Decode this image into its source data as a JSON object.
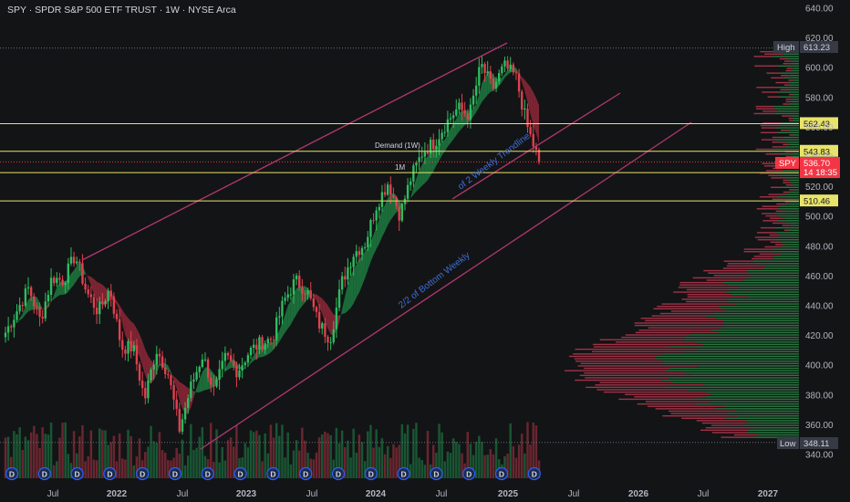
{
  "header": {
    "title": "SPY · SPDR S&P 500 ETF TRUST · 1W · NYSE Arca"
  },
  "colors": {
    "background": "#131416",
    "bull": "#22a150",
    "bear": "#d23a4a",
    "level_line": "#e8e36a",
    "channel": "#b1386f",
    "annotation_text": "#3f6ed8",
    "price_tag": "#f23645",
    "high_low_tag": "#363a45",
    "grid_text": "#b2b5be"
  },
  "chart_data": {
    "type": "candlestick",
    "symbol": "SPY",
    "timeframe": "1W",
    "x_labels": [
      "Jul",
      "2022",
      "Jul",
      "2023",
      "Jul",
      "2024",
      "Jul",
      "2025",
      "Jul",
      "2026",
      "Jul",
      "2027"
    ],
    "y_ticks": [
      340,
      360,
      380,
      400,
      420,
      440,
      460,
      480,
      500,
      520,
      540,
      560,
      580,
      600,
      620,
      640
    ],
    "y_tick_labels": [
      "340.00",
      "360.00",
      "380.00",
      "400.00",
      "420.00",
      "440.00",
      "460.00",
      "480.00",
      "500.00",
      "520.00",
      "540.00",
      "560.00",
      "580.00",
      "600.00",
      "620.00",
      "640.00"
    ],
    "ylim": [
      334,
      646
    ],
    "price_series_close": [
      {
        "date": "2021-06",
        "close": 422
      },
      {
        "date": "2021-07",
        "close": 437
      },
      {
        "date": "2021-08",
        "close": 452
      },
      {
        "date": "2021-09",
        "close": 430
      },
      {
        "date": "2021-10",
        "close": 459
      },
      {
        "date": "2021-11",
        "close": 457
      },
      {
        "date": "2021-12",
        "close": 474
      },
      {
        "date": "2022-01",
        "close": 449
      },
      {
        "date": "2022-02",
        "close": 436
      },
      {
        "date": "2022-03",
        "close": 452
      },
      {
        "date": "2022-04",
        "close": 412
      },
      {
        "date": "2022-05",
        "close": 412
      },
      {
        "date": "2022-06",
        "close": 377
      },
      {
        "date": "2022-07",
        "close": 411
      },
      {
        "date": "2022-08",
        "close": 395
      },
      {
        "date": "2022-09",
        "close": 357
      },
      {
        "date": "2022-10",
        "close": 386
      },
      {
        "date": "2022-11",
        "close": 407
      },
      {
        "date": "2022-12",
        "close": 382
      },
      {
        "date": "2023-01",
        "close": 406
      },
      {
        "date": "2023-02",
        "close": 396
      },
      {
        "date": "2023-03",
        "close": 409
      },
      {
        "date": "2023-04",
        "close": 415
      },
      {
        "date": "2023-05",
        "close": 418
      },
      {
        "date": "2023-06",
        "close": 443
      },
      {
        "date": "2023-07",
        "close": 457
      },
      {
        "date": "2023-08",
        "close": 450
      },
      {
        "date": "2023-09",
        "close": 428
      },
      {
        "date": "2023-10",
        "close": 418
      },
      {
        "date": "2023-11",
        "close": 456
      },
      {
        "date": "2023-12",
        "close": 475
      },
      {
        "date": "2024-01",
        "close": 482
      },
      {
        "date": "2024-02",
        "close": 508
      },
      {
        "date": "2024-03",
        "close": 523
      },
      {
        "date": "2024-04",
        "close": 501
      },
      {
        "date": "2024-05",
        "close": 527
      },
      {
        "date": "2024-06",
        "close": 544
      },
      {
        "date": "2024-07",
        "close": 550
      },
      {
        "date": "2024-08",
        "close": 563
      },
      {
        "date": "2024-09",
        "close": 573
      },
      {
        "date": "2024-10",
        "close": 568
      },
      {
        "date": "2024-11",
        "close": 602
      },
      {
        "date": "2024-12",
        "close": 586
      },
      {
        "date": "2025-01",
        "close": 601
      },
      {
        "date": "2025-02",
        "close": 594
      },
      {
        "date": "2025-03",
        "close": 560
      },
      {
        "date": "2025-04",
        "close": 536.7
      }
    ],
    "horizontal_levels": [
      {
        "value": 562.43,
        "label": "562.43"
      },
      {
        "value": 543.83,
        "label": "543.83"
      },
      {
        "value": 529.53,
        "label": "529.53"
      },
      {
        "value": 510.46,
        "label": "510.46"
      }
    ],
    "high": {
      "label": "High",
      "value": "613.23"
    },
    "low": {
      "label": "Low",
      "value": "348.11"
    },
    "last_price": {
      "symbol": "SPY",
      "value": "536.70",
      "countdown": "14 18:35"
    },
    "annotations": [
      {
        "text": "Demand (1W)"
      },
      {
        "text": "1M"
      },
      {
        "text": "2/2 of Bottom Weekly"
      },
      {
        "text": "of 2 Weekly Trendline"
      }
    ],
    "dividend_marker": "D"
  }
}
